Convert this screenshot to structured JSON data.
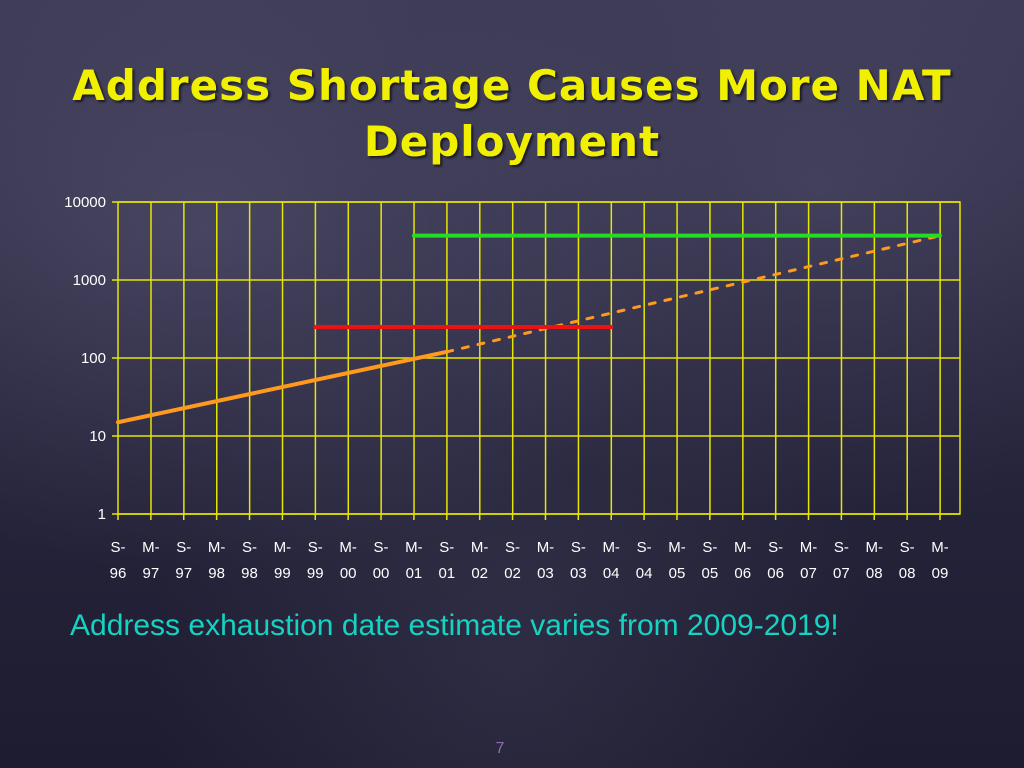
{
  "slide": {
    "title": "Address Shortage Causes More NAT Deployment",
    "caption": "Address exhaustion date estimate varies from 2009-2019!",
    "page_number": "7"
  },
  "colors": {
    "title": "#f0f000",
    "caption": "#16d2c2",
    "grid": "#e6e600",
    "trend": "#ff9a1f",
    "red_line": "#ee1111",
    "green_line": "#22dd22"
  },
  "chart_data": {
    "type": "line",
    "title": "",
    "xlabel": "",
    "ylabel": "",
    "y_scale": "log",
    "ylim": [
      1,
      10000
    ],
    "y_ticks": [
      "1",
      "10",
      "100",
      "1000",
      "10000"
    ],
    "grid": true,
    "categories": [
      [
        "S-",
        "96"
      ],
      [
        "M-",
        "97"
      ],
      [
        "S-",
        "97"
      ],
      [
        "M-",
        "98"
      ],
      [
        "S-",
        "98"
      ],
      [
        "M-",
        "99"
      ],
      [
        "S-",
        "99"
      ],
      [
        "M-",
        "00"
      ],
      [
        "S-",
        "00"
      ],
      [
        "M-",
        "01"
      ],
      [
        "S-",
        "01"
      ],
      [
        "M-",
        "02"
      ],
      [
        "S-",
        "02"
      ],
      [
        "M-",
        "03"
      ],
      [
        "S-",
        "03"
      ],
      [
        "M-",
        "04"
      ],
      [
        "S-",
        "04"
      ],
      [
        "M-",
        "05"
      ],
      [
        "S-",
        "05"
      ],
      [
        "M-",
        "06"
      ],
      [
        "S-",
        "06"
      ],
      [
        "M-",
        "07"
      ],
      [
        "S-",
        "07"
      ],
      [
        "M-",
        "08"
      ],
      [
        "S-",
        "08"
      ],
      [
        "M-",
        "09"
      ]
    ],
    "series": [
      {
        "style": "solid",
        "color": "#ff9a1f",
        "x": [
          "S-96",
          "S-01"
        ],
        "y": [
          15,
          120
        ]
      },
      {
        "style": "dashed",
        "color": "#ff9a1f",
        "x": [
          "S-01",
          "M-09"
        ],
        "y": [
          120,
          3700
        ]
      },
      {
        "style": "solid",
        "color": "#ee1111",
        "x": [
          "S-99",
          "M-04"
        ],
        "y": [
          250,
          250
        ]
      },
      {
        "style": "solid",
        "color": "#22dd22",
        "x": [
          "M-01",
          "M-09"
        ],
        "y": [
          3700,
          3700
        ]
      }
    ]
  }
}
